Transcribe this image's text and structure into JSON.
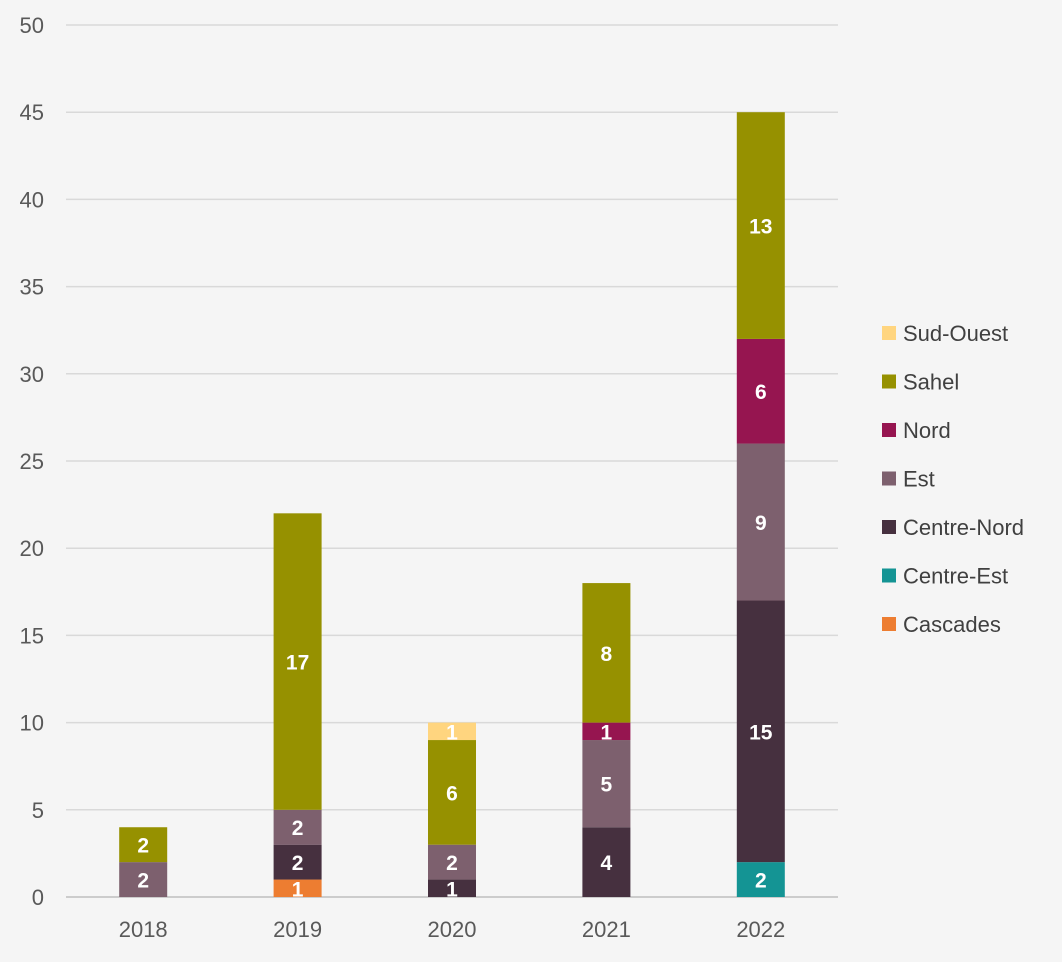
{
  "chart_data": {
    "type": "bar",
    "stacked": true,
    "title": "",
    "xlabel": "",
    "ylabel": "",
    "categories": [
      "2018",
      "2019",
      "2020",
      "2021",
      "2022"
    ],
    "ylim": [
      0,
      50
    ],
    "yticks": [
      0,
      5,
      10,
      15,
      20,
      25,
      30,
      35,
      40,
      45,
      50
    ],
    "grid": "horizontal",
    "legend_position": "right",
    "series": [
      {
        "name": "Cascades",
        "color": "#ed7d31",
        "values": [
          0,
          1,
          0,
          0,
          0
        ]
      },
      {
        "name": "Centre-Est",
        "color": "#149494",
        "values": [
          0,
          0,
          0,
          0,
          2
        ]
      },
      {
        "name": "Centre-Nord",
        "color": "#46303f",
        "values": [
          0,
          2,
          1,
          4,
          15
        ]
      },
      {
        "name": "Est",
        "color": "#7d606e",
        "values": [
          2,
          2,
          2,
          5,
          9
        ]
      },
      {
        "name": "Nord",
        "color": "#961550",
        "values": [
          0,
          0,
          0,
          1,
          6
        ]
      },
      {
        "name": "Sahel",
        "color": "#969100",
        "values": [
          2,
          17,
          6,
          8,
          13
        ]
      },
      {
        "name": "Sud-Ouest",
        "color": "#ffd57f",
        "values": [
          0,
          0,
          1,
          0,
          0
        ]
      }
    ]
  }
}
